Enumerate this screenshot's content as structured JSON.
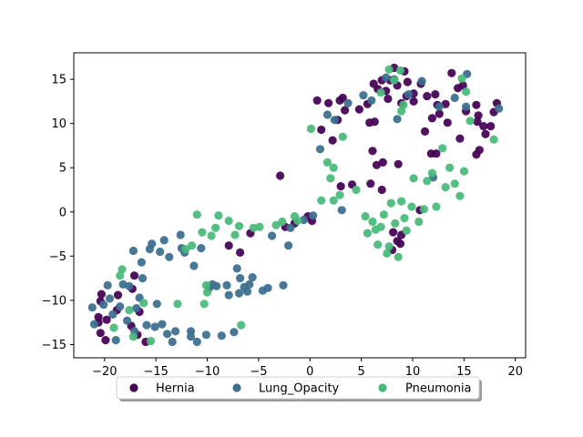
{
  "chart_data": {
    "type": "scatter",
    "title": "",
    "xlabel": "",
    "ylabel": "",
    "xlim": [
      -23,
      21
    ],
    "ylim": [
      -16.5,
      18
    ],
    "xticks": [
      -20,
      -15,
      -10,
      -5,
      0,
      5,
      10,
      15,
      20
    ],
    "yticks": [
      -15,
      -10,
      -5,
      0,
      5,
      10,
      15
    ],
    "grid": false,
    "legend_position": "below, center",
    "series": [
      {
        "name": "Hernia",
        "color": "#440154",
        "points": [
          [
            -20.3,
            -9.3
          ],
          [
            -20.4,
            -10.1
          ],
          [
            -20.6,
            -11.9
          ],
          [
            -20.4,
            -13.7
          ],
          [
            -20.6,
            -12.5
          ],
          [
            -19.8,
            -12.2
          ],
          [
            -19.9,
            -14.5
          ],
          [
            -18.8,
            -11.1
          ],
          [
            -18.7,
            -9.4
          ],
          [
            -17.4,
            -12.9
          ],
          [
            -17.3,
            -8.7
          ],
          [
            -17.1,
            -7.2
          ],
          [
            -16.6,
            -11.3
          ],
          [
            -16.8,
            -13.9
          ],
          [
            -16.0,
            -14.7
          ],
          [
            -7.9,
            -3.8
          ],
          [
            -6.8,
            -4.6
          ],
          [
            -5.8,
            -2.4
          ],
          [
            -2.9,
            4.1
          ],
          [
            -2.4,
            -1.7
          ],
          [
            -1.5,
            -1.3
          ],
          [
            -0.2,
            -0.5
          ],
          [
            0.2,
            -1.0
          ],
          [
            1.1,
            9.3
          ],
          [
            0.7,
            12.6
          ],
          [
            1.8,
            12.3
          ],
          [
            2.9,
            12.6
          ],
          [
            2.2,
            8.1
          ],
          [
            2.7,
            10.4
          ],
          [
            3.4,
            11.5
          ],
          [
            3.2,
            12.9
          ],
          [
            3.0,
            2.9
          ],
          [
            4.1,
            3.1
          ],
          [
            4.8,
            11.6
          ],
          [
            5.8,
            10.1
          ],
          [
            5.6,
            12.2
          ],
          [
            6.3,
            10.2
          ],
          [
            6.6,
            13.9
          ],
          [
            6.2,
            14.5
          ],
          [
            7.0,
            14.9
          ],
          [
            7.4,
            13.7
          ],
          [
            7.6,
            12.8
          ],
          [
            7.8,
            14.9
          ],
          [
            8.2,
            16.3
          ],
          [
            8.5,
            14.3
          ],
          [
            8.9,
            12.3
          ],
          [
            9.2,
            15.9
          ],
          [
            9.5,
            14.7
          ],
          [
            10.1,
            13.4
          ],
          [
            10.8,
            14.5
          ],
          [
            11.4,
            13.1
          ],
          [
            12.2,
            13.3
          ],
          [
            11.9,
            10.6
          ],
          [
            12.4,
            12.1
          ],
          [
            12.6,
            11.1
          ],
          [
            13.2,
            12.2
          ],
          [
            13.8,
            15.7
          ],
          [
            14.4,
            14.0
          ],
          [
            14.6,
            8.3
          ],
          [
            14.9,
            14.3
          ],
          [
            15.2,
            11.4
          ],
          [
            16.2,
            12.1
          ],
          [
            16.4,
            10.9
          ],
          [
            16.3,
            10.2
          ],
          [
            16.9,
            9.7
          ],
          [
            17.1,
            8.8
          ],
          [
            17.6,
            9.7
          ],
          [
            17.9,
            11.3
          ],
          [
            18.2,
            12.3
          ],
          [
            16.2,
            6.5
          ],
          [
            16.5,
            7.0
          ],
          [
            11.8,
            6.6
          ],
          [
            6.1,
            6.9
          ],
          [
            6.5,
            5.3
          ],
          [
            7.1,
            5.6
          ],
          [
            8.6,
            5.4
          ],
          [
            7.0,
            2.5
          ],
          [
            8.1,
            -2.3
          ],
          [
            8.5,
            -3.3
          ],
          [
            8.0,
            -4.3
          ],
          [
            8.9,
            -2.6
          ],
          [
            8.8,
            -3.6
          ],
          [
            10.7,
            0.2
          ],
          [
            5.9,
            3.2
          ],
          [
            12.3,
            6.6
          ],
          [
            10.1,
            12.5
          ],
          [
            9.4,
            13.1
          ],
          [
            11.2,
            9.1
          ],
          [
            13.4,
            10.1
          ]
        ]
      },
      {
        "name": "Lung_Opacity",
        "color": "#3b6e8f",
        "points": [
          [
            -21.2,
            -10.8
          ],
          [
            -20.1,
            -10.5
          ],
          [
            -19.7,
            -8.3
          ],
          [
            -19.5,
            -9.8
          ],
          [
            -19.2,
            -11.6
          ],
          [
            -18.9,
            -14.5
          ],
          [
            -18.5,
            -10.7
          ],
          [
            -18.2,
            -8.2
          ],
          [
            -17.8,
            -12.3
          ],
          [
            -17.6,
            -8.4
          ],
          [
            -17.2,
            -4.4
          ],
          [
            -16.9,
            -10.9
          ],
          [
            -16.6,
            -9.7
          ],
          [
            -16.3,
            -7.5
          ],
          [
            -16.4,
            -5.7
          ],
          [
            -15.9,
            -12.8
          ],
          [
            -15.6,
            -4.2
          ],
          [
            -15.4,
            -3.6
          ],
          [
            -15.1,
            -13.0
          ],
          [
            -14.6,
            -4.5
          ],
          [
            -14.2,
            -3.2
          ],
          [
            -14.4,
            -12.7
          ],
          [
            -13.7,
            -5.1
          ],
          [
            -13.9,
            -13.8
          ],
          [
            -13.4,
            -14.7
          ],
          [
            -13.1,
            -13.5
          ],
          [
            -12.6,
            -2.6
          ],
          [
            -12.5,
            -4.1
          ],
          [
            -12.2,
            -4.6
          ],
          [
            -11.6,
            -13.5
          ],
          [
            -11.3,
            -6.1
          ],
          [
            -11.6,
            -14.1
          ],
          [
            -11.0,
            -14.7
          ],
          [
            -10.6,
            -4.1
          ],
          [
            -10.1,
            -13.9
          ],
          [
            -9.8,
            -8.6
          ],
          [
            -9.5,
            -8.2
          ],
          [
            -9.1,
            -8.4
          ],
          [
            -8.6,
            -14.0
          ],
          [
            -8.1,
            -8.3
          ],
          [
            -7.9,
            -9.4
          ],
          [
            -7.4,
            -13.6
          ],
          [
            -7.1,
            -6.4
          ],
          [
            -6.8,
            -7.5
          ],
          [
            -6.9,
            -9.2
          ],
          [
            -6.4,
            -8.5
          ],
          [
            -6.1,
            -9.0
          ],
          [
            -5.9,
            -8.2
          ],
          [
            -5.6,
            -7.4
          ],
          [
            -4.6,
            -8.9
          ],
          [
            -4.1,
            -8.6
          ],
          [
            -3.7,
            -2.7
          ],
          [
            -2.6,
            -8.3
          ],
          [
            -2.1,
            -3.8
          ],
          [
            -1.9,
            -1.8
          ],
          [
            -0.6,
            -0.9
          ],
          [
            0.3,
            -0.4
          ],
          [
            1.0,
            7.1
          ],
          [
            1.7,
            11.0
          ],
          [
            2.4,
            10.4
          ],
          [
            3.1,
            0.2
          ],
          [
            3.7,
            12.3
          ],
          [
            5.2,
            13.2
          ],
          [
            6.0,
            12.6
          ],
          [
            7.4,
            15.2
          ],
          [
            8.2,
            15.0
          ],
          [
            9.6,
            13.3
          ],
          [
            10.9,
            14.8
          ],
          [
            15.3,
            15.6
          ],
          [
            18.4,
            11.7
          ],
          [
            8.5,
            10.5
          ],
          [
            12.6,
            11.9
          ],
          [
            14.1,
            12.9
          ],
          [
            12.0,
            3.9
          ],
          [
            15.2,
            11.9
          ],
          [
            -21.0,
            -12.7
          ],
          [
            -17.1,
            -13.5
          ],
          [
            -14.9,
            -10.4
          ]
        ]
      },
      {
        "name": "Pneumonia",
        "color": "#48b97a",
        "points": [
          [
            -19.1,
            -13.1
          ],
          [
            -18.5,
            -7.2
          ],
          [
            -18.3,
            -6.5
          ],
          [
            -17.6,
            -11.1
          ],
          [
            -17.2,
            -14.1
          ],
          [
            -16.2,
            -10.3
          ],
          [
            -12.9,
            -10.4
          ],
          [
            -12.1,
            -4.2
          ],
          [
            -11.5,
            -3.8
          ],
          [
            -11.0,
            -0.3
          ],
          [
            -10.5,
            -2.3
          ],
          [
            -10.3,
            -10.4
          ],
          [
            -9.6,
            -2.7
          ],
          [
            -9.2,
            -1.8
          ],
          [
            -8.9,
            -0.4
          ],
          [
            -7.9,
            -1.0
          ],
          [
            -7.3,
            -2.6
          ],
          [
            -6.9,
            -1.6
          ],
          [
            -6.7,
            -12.8
          ],
          [
            -5.5,
            -1.8
          ],
          [
            -4.9,
            -1.7
          ],
          [
            -3.3,
            -1.5
          ],
          [
            -2.7,
            -1.1
          ],
          [
            -1.2,
            -1.0
          ],
          [
            -1.5,
            -0.5
          ],
          [
            0.1,
            9.4
          ],
          [
            1.1,
            1.3
          ],
          [
            1.7,
            5.6
          ],
          [
            2.0,
            3.8
          ],
          [
            2.3,
            5.0
          ],
          [
            2.3,
            1.3
          ],
          [
            2.9,
            1.9
          ],
          [
            3.2,
            8.5
          ],
          [
            4.5,
            2.5
          ],
          [
            5.4,
            -0.5
          ],
          [
            5.6,
            -2.4
          ],
          [
            6.1,
            -1.1
          ],
          [
            6.4,
            -2.0
          ],
          [
            6.6,
            -3.7
          ],
          [
            6.9,
            -1.7
          ],
          [
            7.2,
            -0.3
          ],
          [
            7.5,
            -4.7
          ],
          [
            7.7,
            -3.9
          ],
          [
            7.9,
            1.0
          ],
          [
            8.3,
            -1.3
          ],
          [
            8.6,
            -5.1
          ],
          [
            8.9,
            1.2
          ],
          [
            9.2,
            -0.7
          ],
          [
            9.4,
            -2.1
          ],
          [
            9.9,
            0.6
          ],
          [
            10.1,
            3.8
          ],
          [
            10.6,
            -1.1
          ],
          [
            11.1,
            0.3
          ],
          [
            11.4,
            3.5
          ],
          [
            11.9,
            4.4
          ],
          [
            12.3,
            0.6
          ],
          [
            13.2,
            2.8
          ],
          [
            13.6,
            5.0
          ],
          [
            14.1,
            3.2
          ],
          [
            14.6,
            1.8
          ],
          [
            15.0,
            4.6
          ],
          [
            15.6,
            10.3
          ],
          [
            15.2,
            13.6
          ],
          [
            8.2,
            14.9
          ],
          [
            8.8,
            16.0
          ],
          [
            7.7,
            16.1
          ],
          [
            6.9,
            13.5
          ],
          [
            8.9,
            11.4
          ],
          [
            9.1,
            12.1
          ],
          [
            17.9,
            8.2
          ],
          [
            14.8,
            15.1
          ],
          [
            12.9,
            7.2
          ],
          [
            -10.1,
            -8.3
          ],
          [
            -10.0,
            -9.1
          ],
          [
            -15.5,
            -14.6
          ]
        ]
      }
    ]
  }
}
